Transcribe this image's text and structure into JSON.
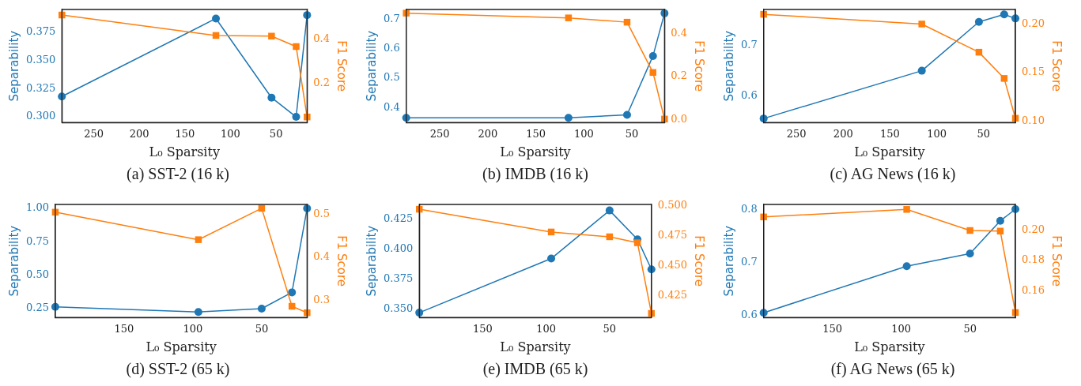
{
  "chart_data": [
    {
      "type": "line",
      "title": "(a) SST-2 (16 k)",
      "xlabel": "L₀ Sparsity",
      "ylabel": "Separability",
      "y2label": "F1 Score",
      "x": [
        285,
        116,
        55,
        28,
        16
      ],
      "xlim": [
        285,
        16
      ],
      "xticks": [
        250,
        200,
        150,
        100,
        50
      ],
      "ylim": [
        0.295,
        0.395
      ],
      "yticks": [
        {
          "value": 0.3,
          "label": "0.300"
        },
        {
          "value": 0.325,
          "label": "0.325"
        },
        {
          "value": 0.35,
          "label": "0.350"
        },
        {
          "value": 0.375,
          "label": "0.375"
        }
      ],
      "y2lim": [
        0.024,
        0.533
      ],
      "y2ticks": [
        0.2,
        0.4
      ],
      "grid": false,
      "legend": false,
      "series": [
        {
          "color": "#1f77b4",
          "marker": "circle",
          "values": [
            0.318,
            0.387,
            0.317,
            0.3,
            0.39
          ]
        },
        {
          "color": "#ff7f0e",
          "marker": "square",
          "axis": "y2",
          "values": [
            0.508,
            0.416,
            0.413,
            0.366,
            0.049
          ]
        }
      ]
    },
    {
      "type": "line",
      "title": "(b) IMDB (16 k)",
      "xlabel": "L₀ Sparsity",
      "ylabel": "Separability",
      "y2label": "F1 Score",
      "x": [
        285,
        116,
        55,
        28,
        16
      ],
      "xlim": [
        285,
        16
      ],
      "xticks": [
        250,
        200,
        150,
        100,
        50
      ],
      "ylim": [
        0.349,
        0.733
      ],
      "yticks": [
        0.4,
        0.5,
        0.6,
        0.7
      ],
      "y2lim": [
        -0.013,
        0.511
      ],
      "y2ticks": [
        {
          "value": 0,
          "label": "0.0"
        },
        0.2,
        0.4
      ],
      "grid": false,
      "legend": false,
      "series": [
        {
          "color": "#1f77b4",
          "marker": "circle",
          "values": [
            0.365,
            0.365,
            0.375,
            0.575,
            0.72
          ]
        },
        {
          "color": "#ff7f0e",
          "marker": "square",
          "axis": "y2",
          "values": [
            0.494,
            0.472,
            0.452,
            0.219,
            0.003
          ]
        }
      ]
    },
    {
      "type": "line",
      "title": "(c) AG News (16 k)",
      "xlabel": "L₀ Sparsity",
      "ylabel": "Separability",
      "y2label": "F1 Score",
      "x": [
        285,
        116,
        55,
        28,
        16
      ],
      "xlim": [
        285,
        16
      ],
      "xticks": [
        250,
        200,
        150,
        100,
        50
      ],
      "ylim": [
        0.546,
        0.773
      ],
      "yticks": [
        0.6,
        0.7
      ],
      "y2lim": [
        0.0986,
        0.215
      ],
      "y2ticks": [
        {
          "value": 0.1,
          "label": "0.10"
        },
        0.15,
        {
          "value": 0.2,
          "label": "0.20"
        }
      ],
      "grid": false,
      "legend": false,
      "series": [
        {
          "color": "#1f77b4",
          "marker": "circle",
          "values": [
            0.554,
            0.65,
            0.748,
            0.763,
            0.755
          ]
        },
        {
          "color": "#ff7f0e",
          "marker": "square",
          "axis": "y2",
          "values": [
            0.21,
            0.2,
            0.171,
            0.144,
            0.103
          ]
        }
      ]
    },
    {
      "type": "line",
      "title": "(d) SST-2 (65 k)",
      "xlabel": "L₀ Sparsity",
      "ylabel": "Separability",
      "y2label": "F1 Score",
      "x": [
        200,
        96,
        50,
        28,
        17
      ],
      "xlim": [
        200,
        17
      ],
      "xticks": [
        150,
        100,
        50
      ],
      "ylim": [
        0.184,
        1.03
      ],
      "yticks": [
        0.25,
        {
          "value": 0.5,
          "label": "0.50"
        },
        0.75,
        {
          "value": 1,
          "label": "1.00"
        }
      ],
      "y2lim": [
        0.26,
        0.523
      ],
      "y2ticks": [
        0.3,
        0.4,
        0.5
      ],
      "grid": false,
      "legend": false,
      "series": [
        {
          "color": "#1f77b4",
          "marker": "circle",
          "values": [
            0.263,
            0.225,
            0.25,
            0.372,
            1.0
          ]
        },
        {
          "color": "#ff7f0e",
          "marker": "square",
          "axis": "y2",
          "values": [
            0.505,
            0.441,
            0.514,
            0.286,
            0.271
          ]
        }
      ]
    },
    {
      "type": "line",
      "title": "(e) IMDB (65 k)",
      "xlabel": "L₀ Sparsity",
      "ylabel": "Separability",
      "y2label": "F1 Score",
      "x": [
        200,
        96,
        50,
        28,
        17
      ],
      "xlim": [
        200,
        17
      ],
      "xticks": [
        150,
        100,
        50
      ],
      "ylim": [
        0.343,
        0.437
      ],
      "yticks": [
        {
          "value": 0.35,
          "label": "0.350"
        },
        0.375,
        {
          "value": 0.4,
          "label": "0.400"
        },
        0.425
      ],
      "y2lim": [
        0.4066,
        0.501
      ],
      "y2ticks": [
        0.425,
        {
          "value": 0.45,
          "label": "0.450"
        },
        0.475,
        {
          "value": 0.5,
          "label": "0.500"
        }
      ],
      "grid": false,
      "legend": false,
      "series": [
        {
          "color": "#1f77b4",
          "marker": "circle",
          "values": [
            0.347,
            0.392,
            0.432,
            0.408,
            0.383
          ]
        },
        {
          "color": "#ff7f0e",
          "marker": "square",
          "axis": "y2",
          "values": [
            0.497,
            0.478,
            0.474,
            0.469,
            0.41
          ]
        }
      ]
    },
    {
      "type": "line",
      "title": "(f) AG News (65 k)",
      "xlabel": "L₀ Sparsity",
      "ylabel": "Separability",
      "y2label": "F1 Score",
      "x": [
        200,
        96,
        50,
        28,
        17
      ],
      "xlim": [
        200,
        17
      ],
      "xticks": [
        150,
        100,
        50
      ],
      "ylim": [
        0.596,
        0.81
      ],
      "yticks": [
        0.6,
        0.7,
        0.8
      ],
      "y2lim": [
        0.1422,
        0.2173
      ],
      "y2ticks": [
        0.16,
        0.18,
        {
          "value": 0.2,
          "label": "0.20"
        }
      ],
      "grid": false,
      "legend": false,
      "series": [
        {
          "color": "#1f77b4",
          "marker": "circle",
          "values": [
            0.605,
            0.693,
            0.717,
            0.779,
            0.801
          ]
        },
        {
          "color": "#ff7f0e",
          "marker": "square",
          "axis": "y2",
          "values": [
            0.209,
            0.214,
            0.2,
            0.1996,
            0.1455
          ]
        }
      ]
    }
  ]
}
